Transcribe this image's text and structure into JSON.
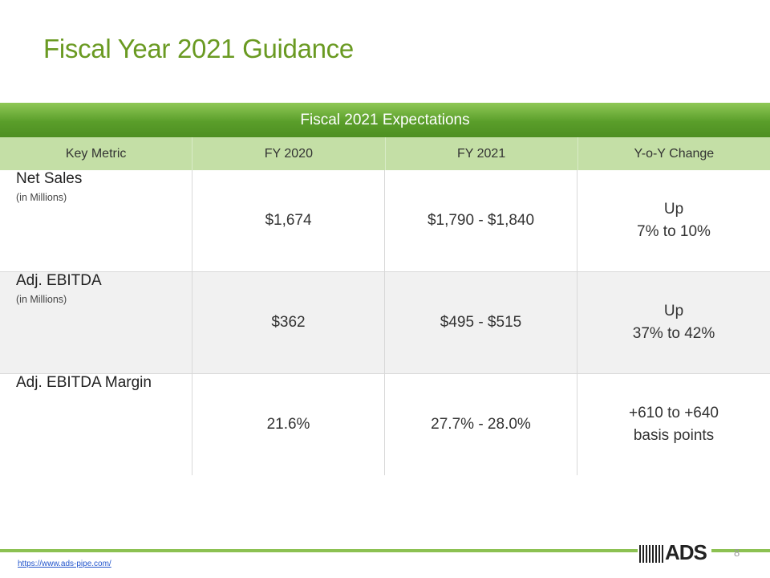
{
  "title": "Fiscal Year 2021 Guidance",
  "table": {
    "banner": "Fiscal 2021 Expectations",
    "headers": [
      "Key Metric",
      "FY 2020",
      "FY 2021",
      "Y-o-Y Change"
    ],
    "rows": [
      {
        "metric": "Net Sales",
        "sub": "(in Millions)",
        "fy2020": "$1,674",
        "fy2021": "$1,790 - $1,840",
        "change_line1": "Up",
        "change_line2": "7% to 10%"
      },
      {
        "metric": "Adj. EBITDA",
        "sub": "(in Millions)",
        "fy2020": "$362",
        "fy2021": "$495 - $515",
        "change_line1": "Up",
        "change_line2": "37% to 42%"
      },
      {
        "metric": "Adj. EBITDA Margin",
        "sub": "",
        "fy2020": "21.6%",
        "fy2021": "27.7% - 28.0%",
        "change_line1": "+610 to +640",
        "change_line2": "basis points"
      }
    ]
  },
  "footer": {
    "url": "https://www.ads-pipe.com/",
    "page_number": "8",
    "logo_text": "ADS"
  },
  "colors": {
    "title": "#6a9a22",
    "banner": "#5a9e2a",
    "header_row": "#c4dfa6",
    "footer_line": "#8cc152"
  }
}
